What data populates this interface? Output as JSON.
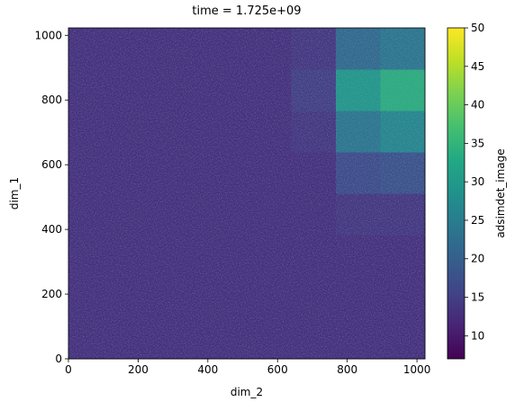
{
  "chart_data": {
    "type": "heatmap",
    "title": "time = 1.725e+09",
    "x_label": "dim_2",
    "y_label": "dim_1",
    "colorbar_label": "adsimdet_image",
    "colormap": "viridis",
    "xlim": [
      0,
      1023
    ],
    "ylim": [
      0,
      1023
    ],
    "xticks": [
      0,
      200,
      400,
      600,
      800,
      1000
    ],
    "yticks": [
      0,
      200,
      400,
      600,
      800,
      1000
    ],
    "zlim": [
      7,
      50
    ],
    "zticks": [
      10,
      15,
      20,
      25,
      30,
      35,
      40,
      45,
      50
    ],
    "z": [
      [
        13,
        13,
        13,
        13,
        13,
        13,
        13,
        13
      ],
      [
        13,
        13,
        13,
        13,
        13,
        13,
        13,
        13
      ],
      [
        13,
        13,
        13,
        13,
        13,
        13,
        13,
        13
      ],
      [
        13,
        13,
        13,
        13,
        13,
        13,
        14,
        14
      ],
      [
        13,
        13,
        13,
        13,
        13,
        13,
        17,
        18
      ],
      [
        13,
        13,
        13,
        13,
        13,
        14,
        24,
        27
      ],
      [
        13,
        13,
        13,
        13,
        13,
        15,
        30,
        34
      ],
      [
        13,
        13,
        13,
        13,
        13,
        14,
        22,
        24
      ]
    ]
  }
}
